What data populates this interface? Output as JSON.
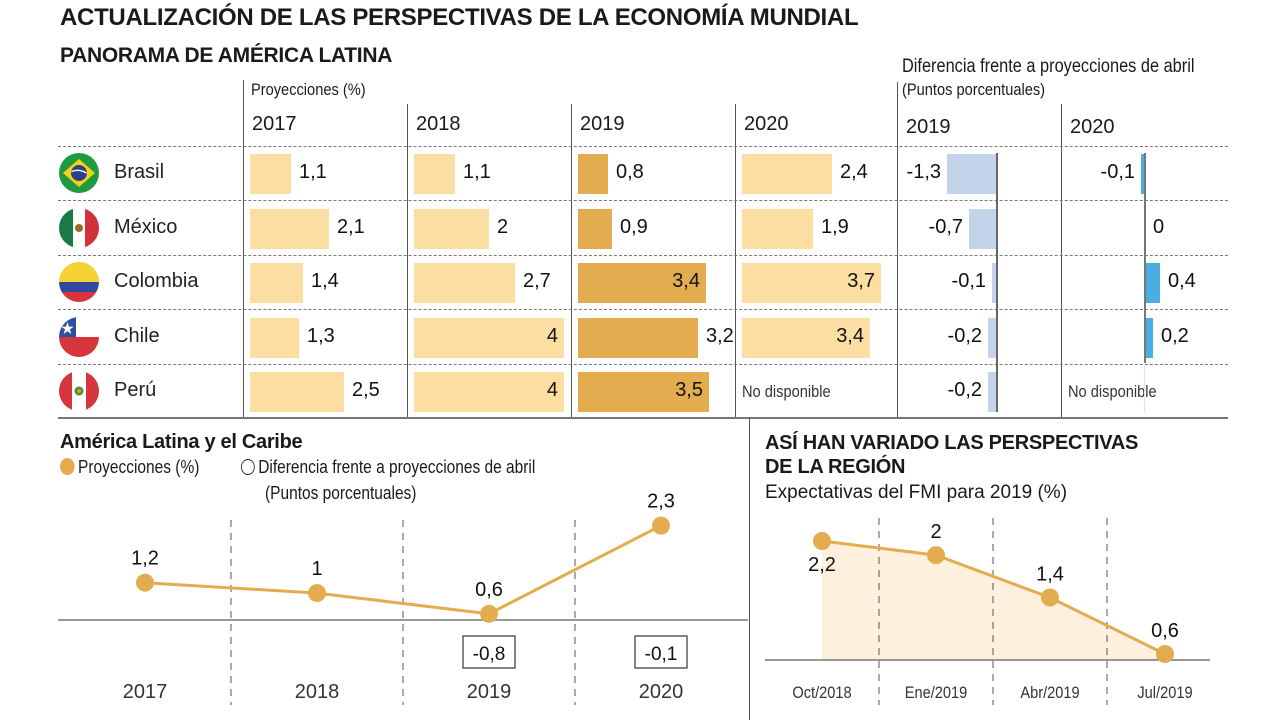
{
  "title": "ACTUALIZACIÓN DE LAS PERSPECTIVAS DE LA ECONOMÍA MUNDIAL",
  "subtitle": "PANORAMA DE AMÉRICA LATINA",
  "table": {
    "projections_label": "Proyecciones (%)",
    "difference_label": "Diferencia frente a proyecciones de abril",
    "difference_unit": "(Puntos porcentuales)",
    "projection_years": [
      "2017",
      "2018",
      "2019",
      "2020"
    ],
    "difference_years": [
      "2019",
      "2020"
    ],
    "not_available": "No disponible",
    "colors": {
      "projection_bar": "#fcdea2",
      "projection_bar_2019": "#e3ac4f",
      "diff_2019_bar": "#c3d3ea",
      "diff_2020_bar": "#4aaee0"
    },
    "rows": [
      {
        "country": "Brasil",
        "flag": "brazil-flag",
        "projections": [
          {
            "value": 1.1,
            "label": "1,1"
          },
          {
            "value": 1.1,
            "label": "1,1"
          },
          {
            "value": 0.8,
            "label": "0,8"
          },
          {
            "value": 2.4,
            "label": "2,4"
          }
        ],
        "differences": [
          {
            "value": -1.3,
            "label": "-1,3"
          },
          {
            "value": -0.1,
            "label": "-0,1"
          }
        ]
      },
      {
        "country": "México",
        "flag": "mexico-flag",
        "projections": [
          {
            "value": 2.1,
            "label": "2,1"
          },
          {
            "value": 2,
            "label": "2"
          },
          {
            "value": 0.9,
            "label": "0,9"
          },
          {
            "value": 1.9,
            "label": "1,9"
          }
        ],
        "differences": [
          {
            "value": -0.7,
            "label": "-0,7"
          },
          {
            "value": 0,
            "label": "0"
          }
        ]
      },
      {
        "country": "Colombia",
        "flag": "colombia-flag",
        "projections": [
          {
            "value": 1.4,
            "label": "1,4"
          },
          {
            "value": 2.7,
            "label": "2,7"
          },
          {
            "value": 3.4,
            "label": "3,4"
          },
          {
            "value": 3.7,
            "label": "3,7"
          }
        ],
        "differences": [
          {
            "value": -0.1,
            "label": "-0,1"
          },
          {
            "value": 0.4,
            "label": "0,4"
          }
        ]
      },
      {
        "country": "Chile",
        "flag": "chile-flag",
        "projections": [
          {
            "value": 1.3,
            "label": "1,3"
          },
          {
            "value": 4,
            "label": "4"
          },
          {
            "value": 3.2,
            "label": "3,2"
          },
          {
            "value": 3.4,
            "label": "3,4"
          }
        ],
        "differences": [
          {
            "value": -0.2,
            "label": "-0,2"
          },
          {
            "value": 0.2,
            "label": "0,2"
          }
        ]
      },
      {
        "country": "Perú",
        "flag": "peru-flag",
        "projections": [
          {
            "value": 2.5,
            "label": "2,5"
          },
          {
            "value": 4,
            "label": "4"
          },
          {
            "value": 3.5,
            "label": "3,5"
          },
          {
            "value": null,
            "label": "No disponible"
          }
        ],
        "differences": [
          {
            "value": -0.2,
            "label": "-0,2"
          },
          {
            "value": null,
            "label": "No disponible"
          }
        ]
      }
    ]
  },
  "latam": {
    "title": "América Latina y el Caribe",
    "legend_projection": "Proyecciones (%)",
    "legend_difference": "Diferencia frente a proyecciones de abril",
    "legend_difference_unit": "(Puntos porcentuales)"
  },
  "region": {
    "title_line1": "ASÍ HAN VARIADO LAS PERSPECTIVAS",
    "title_line2": "DE LA REGIÓN",
    "subtitle": "Expectativas del FMI para 2019 (%)"
  },
  "chart_data": [
    {
      "type": "bar",
      "title": "Panorama de América Latina - Proyecciones (%)",
      "categories": [
        "Brasil",
        "México",
        "Colombia",
        "Chile",
        "Perú"
      ],
      "series": [
        {
          "name": "2017",
          "values": [
            1.1,
            2.1,
            1.4,
            1.3,
            2.5
          ]
        },
        {
          "name": "2018",
          "values": [
            1.1,
            2,
            2.7,
            4,
            4
          ]
        },
        {
          "name": "2019",
          "values": [
            0.8,
            0.9,
            3.4,
            3.2,
            3.5
          ]
        },
        {
          "name": "2020",
          "values": [
            2.4,
            1.9,
            3.7,
            3.4,
            null
          ]
        }
      ],
      "annotations": [
        "No disponible (Perú 2020)"
      ]
    },
    {
      "type": "bar",
      "title": "Diferencia frente a proyecciones de abril (Puntos porcentuales)",
      "categories": [
        "Brasil",
        "México",
        "Colombia",
        "Chile",
        "Perú"
      ],
      "series": [
        {
          "name": "2019",
          "values": [
            -1.3,
            -0.7,
            -0.1,
            -0.2,
            -0.2
          ]
        },
        {
          "name": "2020",
          "values": [
            -0.1,
            0,
            0.4,
            0.2,
            null
          ]
        }
      ],
      "annotations": [
        "No disponible (Perú 2020)"
      ]
    },
    {
      "type": "line",
      "title": "América Latina y el Caribe",
      "categories": [
        "2017",
        "2018",
        "2019",
        "2020"
      ],
      "series": [
        {
          "name": "Proyecciones (%)",
          "values": [
            1.2,
            1,
            0.6,
            2.3
          ],
          "labels": [
            "1,2",
            "1",
            "0,6",
            "2,3"
          ]
        },
        {
          "name": "Diferencia frente a proyecciones de abril (Puntos porcentuales)",
          "values": [
            null,
            null,
            -0.8,
            -0.1
          ],
          "labels": [
            "",
            "",
            "-0,8",
            "-0,1"
          ]
        }
      ],
      "ylim": [
        0,
        2.6
      ],
      "grid": "vertical-dashed",
      "legend": "top-left"
    },
    {
      "type": "area",
      "title": "ASÍ HAN VARIADO LAS PERSPECTIVAS DE LA REGIÓN",
      "subtitle": "Expectativas del FMI para 2019 (%)",
      "categories": [
        "Oct/2018",
        "Ene/2019",
        "Abr/2019",
        "Jul/2019"
      ],
      "values": [
        2.2,
        2,
        1.4,
        0.6
      ],
      "labels": [
        "2,2",
        "2",
        "1,4",
        "0,6"
      ],
      "ylim": [
        0.55,
        2.5
      ],
      "grid": "vertical-dashed"
    }
  ]
}
